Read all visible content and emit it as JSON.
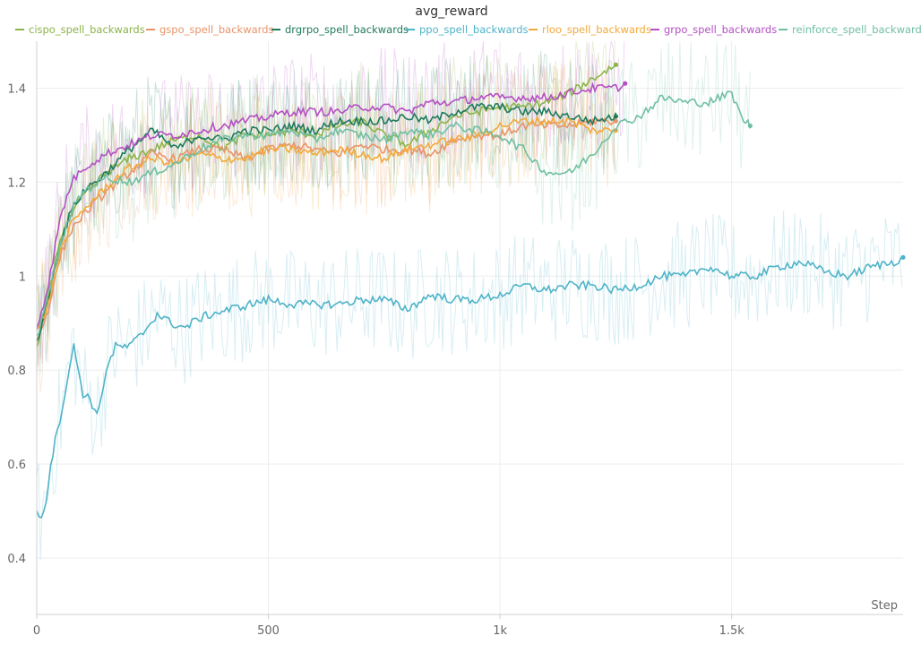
{
  "chart_data": {
    "type": "line",
    "title": "avg_reward",
    "xlabel": "Step",
    "ylabel": "",
    "xlim": [
      0,
      1870
    ],
    "ylim": [
      0.28,
      1.5
    ],
    "x_ticks": [
      0,
      500,
      1000,
      1500
    ],
    "x_tick_labels": [
      "0",
      "500",
      "1k",
      "1.5k"
    ],
    "y_ticks": [
      0.4,
      0.6,
      0.8,
      1.0,
      1.2,
      1.4
    ],
    "y_tick_labels": [
      "0.4",
      "0.6",
      "0.8",
      "1",
      "1.2",
      "1.4"
    ],
    "grid": true,
    "legend_position": "top",
    "series": [
      {
        "name": "cispo_spell_backwards",
        "color": "#8bb44a",
        "x": [
          0,
          25,
          50,
          75,
          100,
          150,
          200,
          250,
          300,
          350,
          400,
          450,
          500,
          550,
          600,
          650,
          700,
          750,
          800,
          850,
          900,
          950,
          1000,
          1050,
          1100,
          1150,
          1200,
          1250
        ],
        "y": [
          0.84,
          0.96,
          1.08,
          1.13,
          1.17,
          1.22,
          1.25,
          1.27,
          1.29,
          1.3,
          1.27,
          1.3,
          1.3,
          1.31,
          1.3,
          1.32,
          1.33,
          1.3,
          1.28,
          1.31,
          1.34,
          1.35,
          1.36,
          1.36,
          1.37,
          1.39,
          1.42,
          1.45
        ]
      },
      {
        "name": "gspo_spell_backwards",
        "color": "#e8946a",
        "x": [
          0,
          25,
          50,
          75,
          100,
          150,
          200,
          250,
          300,
          350,
          400,
          450,
          500,
          550,
          600,
          650,
          700,
          750,
          800,
          850,
          900,
          950,
          1000,
          1050,
          1100,
          1150,
          1200,
          1250
        ],
        "y": [
          0.86,
          0.93,
          1.04,
          1.1,
          1.13,
          1.18,
          1.22,
          1.26,
          1.25,
          1.27,
          1.27,
          1.25,
          1.27,
          1.28,
          1.27,
          1.26,
          1.28,
          1.27,
          1.27,
          1.26,
          1.29,
          1.3,
          1.3,
          1.32,
          1.32,
          1.32,
          1.33,
          1.33
        ]
      },
      {
        "name": "drgrpo_spell_backwards",
        "color": "#1f7a5e",
        "x": [
          0,
          25,
          50,
          75,
          100,
          150,
          200,
          250,
          300,
          350,
          400,
          450,
          500,
          550,
          600,
          650,
          700,
          750,
          800,
          850,
          900,
          950,
          1000,
          1050,
          1100,
          1150,
          1200,
          1250
        ],
        "y": [
          0.86,
          0.95,
          1.07,
          1.14,
          1.18,
          1.22,
          1.27,
          1.31,
          1.27,
          1.3,
          1.29,
          1.31,
          1.31,
          1.32,
          1.31,
          1.33,
          1.33,
          1.33,
          1.34,
          1.33,
          1.35,
          1.36,
          1.36,
          1.35,
          1.35,
          1.34,
          1.33,
          1.34
        ]
      },
      {
        "name": "ppo_spell_backwards",
        "color": "#4fb3c8",
        "x": [
          0,
          10,
          20,
          30,
          40,
          55,
          70,
          80,
          90,
          100,
          115,
          130,
          150,
          170,
          200,
          230,
          260,
          290,
          320,
          350,
          380,
          420,
          460,
          500,
          550,
          600,
          650,
          700,
          750,
          800,
          850,
          900,
          950,
          1000,
          1050,
          1100,
          1150,
          1200,
          1250,
          1300,
          1350,
          1400,
          1450,
          1500,
          1550,
          1600,
          1650,
          1700,
          1750,
          1800,
          1850,
          1870
        ],
        "y": [
          0.5,
          0.49,
          0.52,
          0.6,
          0.65,
          0.72,
          0.8,
          0.85,
          0.8,
          0.75,
          0.74,
          0.7,
          0.8,
          0.85,
          0.85,
          0.88,
          0.92,
          0.9,
          0.89,
          0.91,
          0.92,
          0.93,
          0.94,
          0.95,
          0.94,
          0.94,
          0.94,
          0.95,
          0.95,
          0.93,
          0.96,
          0.95,
          0.95,
          0.96,
          0.98,
          0.97,
          0.98,
          0.98,
          0.97,
          0.98,
          1.0,
          1.0,
          1.02,
          1.0,
          1.0,
          1.02,
          1.03,
          1.01,
          1.0,
          1.02,
          1.03,
          1.04
        ]
      },
      {
        "name": "rloo_spell_backwards",
        "color": "#f2a93b",
        "x": [
          0,
          25,
          50,
          75,
          100,
          150,
          200,
          250,
          300,
          350,
          400,
          450,
          500,
          550,
          600,
          650,
          700,
          750,
          800,
          850,
          900,
          950,
          1000,
          1050,
          1100,
          1150,
          1200,
          1250
        ],
        "y": [
          0.88,
          0.94,
          1.05,
          1.11,
          1.14,
          1.19,
          1.23,
          1.25,
          1.24,
          1.26,
          1.25,
          1.25,
          1.27,
          1.27,
          1.26,
          1.27,
          1.26,
          1.25,
          1.27,
          1.28,
          1.29,
          1.3,
          1.32,
          1.33,
          1.33,
          1.33,
          1.31,
          1.31
        ]
      },
      {
        "name": "grpo_spell_backwards",
        "color": "#b44fc4",
        "x": [
          0,
          25,
          50,
          75,
          100,
          150,
          200,
          250,
          300,
          350,
          400,
          450,
          500,
          550,
          600,
          650,
          700,
          750,
          800,
          850,
          900,
          950,
          1000,
          1050,
          1100,
          1150,
          1200,
          1250,
          1270
        ],
        "y": [
          0.89,
          0.98,
          1.12,
          1.2,
          1.23,
          1.26,
          1.28,
          1.3,
          1.3,
          1.31,
          1.32,
          1.33,
          1.34,
          1.35,
          1.35,
          1.35,
          1.36,
          1.36,
          1.35,
          1.37,
          1.37,
          1.38,
          1.38,
          1.38,
          1.38,
          1.39,
          1.4,
          1.4,
          1.41
        ]
      },
      {
        "name": "reinforce_spell_backwards",
        "color": "#6fbfa2",
        "x": [
          0,
          25,
          50,
          75,
          100,
          150,
          200,
          250,
          300,
          350,
          400,
          450,
          500,
          550,
          600,
          650,
          700,
          750,
          800,
          850,
          900,
          950,
          1000,
          1050,
          1100,
          1150,
          1200,
          1250,
          1300,
          1350,
          1400,
          1450,
          1500,
          1520,
          1540
        ],
        "y": [
          0.87,
          0.96,
          1.06,
          1.14,
          1.18,
          1.21,
          1.2,
          1.22,
          1.24,
          1.27,
          1.29,
          1.3,
          1.3,
          1.31,
          1.29,
          1.31,
          1.3,
          1.29,
          1.31,
          1.3,
          1.32,
          1.31,
          1.3,
          1.27,
          1.22,
          1.22,
          1.26,
          1.32,
          1.34,
          1.38,
          1.37,
          1.37,
          1.39,
          1.34,
          1.32
        ]
      }
    ]
  }
}
